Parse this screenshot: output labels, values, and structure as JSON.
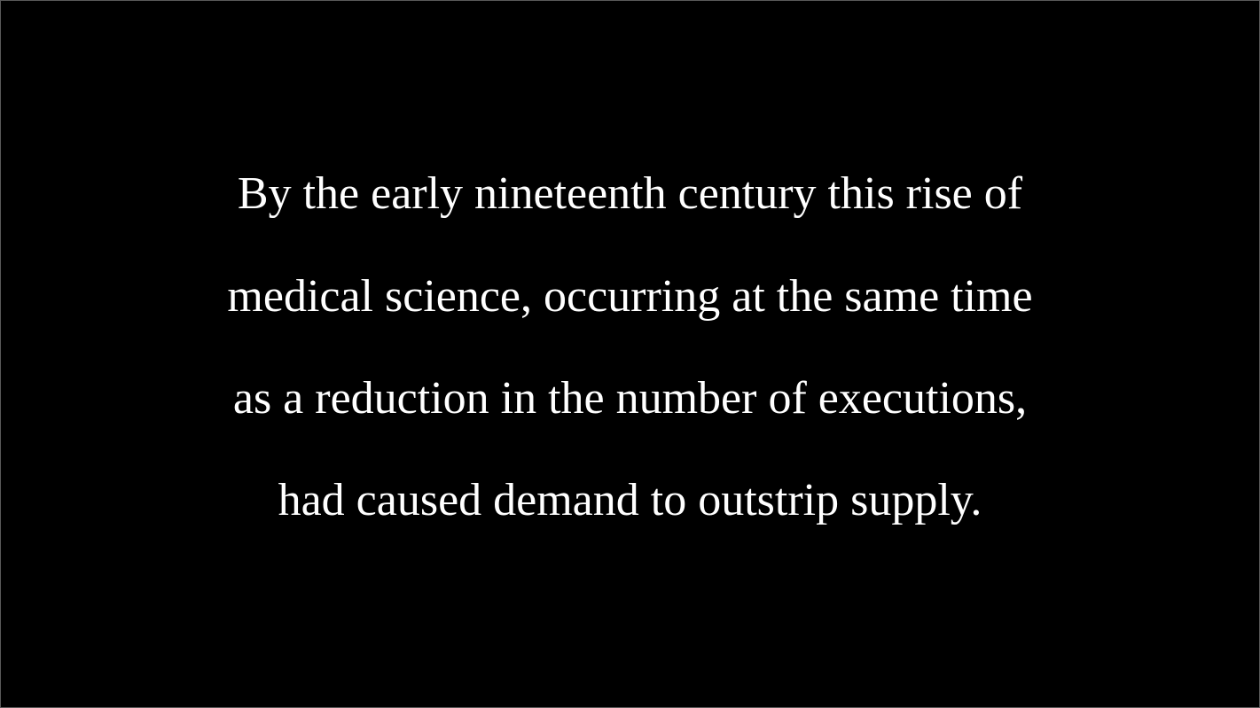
{
  "slide": {
    "background_color": "#000000",
    "text_color": "#ffffff",
    "lines": [
      "By the early nineteenth century this rise of",
      "medical science, occurring at the same time",
      "as a reduction in the number of executions,",
      "had caused demand to outstrip supply."
    ]
  }
}
